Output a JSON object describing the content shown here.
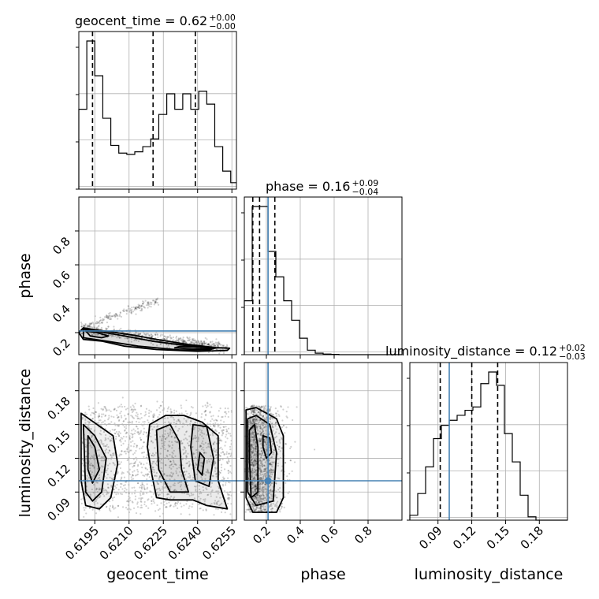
{
  "chart_data": {
    "type": "corner",
    "parameters": [
      "geocent_time",
      "phase",
      "luminosity_distance"
    ],
    "truth_color": "#4682b4",
    "truths": {
      "geocent_time": null,
      "phase": 0.21,
      "luminosity_distance": 0.1
    },
    "titles": {
      "geocent_time": {
        "prefix": "geocent_time = 0.62",
        "plus": "+0.00",
        "minus": "−0.00"
      },
      "phase": {
        "prefix": "phase = 0.16",
        "plus": "+0.09",
        "minus": "−0.04"
      },
      "luminosity_distance": {
        "prefix": "luminosity_distance = 0.12",
        "plus": "+0.02",
        "minus": "−0.03"
      }
    },
    "axis_labels": {
      "x": [
        "geocent_time",
        "phase",
        "luminosity_distance"
      ],
      "y": [
        "phase",
        "luminosity_distance"
      ]
    },
    "ranges": {
      "geocent_time": [
        0.6188,
        0.6257
      ],
      "phase": [
        0.07,
        1.0
      ],
      "luminosity_distance": [
        0.065,
        0.205
      ]
    },
    "ticks": {
      "geocent_time": {
        "values": [
          0.6195,
          0.621,
          0.6225,
          0.624,
          0.6255
        ],
        "labels": [
          "0.6195",
          "0.6210",
          "0.6225",
          "0.6240",
          "0.6255"
        ]
      },
      "phase": {
        "values": [
          0.2,
          0.4,
          0.6,
          0.8
        ],
        "labels": [
          "0.2",
          "0.4",
          "0.6",
          "0.8"
        ]
      },
      "luminosity_distance": {
        "values": [
          0.09,
          0.12,
          0.15,
          0.18
        ],
        "labels": [
          "0.09",
          "0.12",
          "0.15",
          "0.18"
        ]
      }
    },
    "histograms": {
      "geocent_time": {
        "edges": [
          0.6188,
          0.61915,
          0.6195,
          0.61985,
          0.6202,
          0.62055,
          0.6209,
          0.62125,
          0.6216,
          0.62195,
          0.6223,
          0.62265,
          0.623,
          0.62335,
          0.6237,
          0.62405,
          0.6244,
          0.62475,
          0.6251,
          0.62545,
          0.6258
        ],
        "counts": [
          0.62,
          1.15,
          0.88,
          0.55,
          0.34,
          0.28,
          0.27,
          0.29,
          0.33,
          0.39,
          0.58,
          0.74,
          0.62,
          0.74,
          0.62,
          0.76,
          0.66,
          0.33,
          0.14,
          0.05
        ],
        "quantiles": [
          0.6194,
          0.62205,
          0.6239
        ]
      },
      "phase": {
        "edges": [
          0.07,
          0.1165,
          0.163,
          0.2095,
          0.256,
          0.3025,
          0.349,
          0.3955,
          0.442,
          0.4885,
          0.535,
          0.5815,
          0.628,
          0.6745,
          0.721,
          0.7675,
          0.814,
          0.8605,
          0.907,
          0.9535,
          1.0
        ],
        "counts": [
          0.36,
          0.99,
          0.99,
          0.69,
          0.52,
          0.36,
          0.23,
          0.11,
          0.03,
          0.01,
          0.004,
          0.002,
          0,
          0,
          0,
          0,
          0,
          0,
          0,
          0
        ],
        "quantiles": [
          0.12,
          0.16,
          0.25
        ]
      },
      "luminosity_distance": {
        "edges": [
          0.065,
          0.072,
          0.079,
          0.086,
          0.093,
          0.1,
          0.107,
          0.114,
          0.121,
          0.128,
          0.135,
          0.142,
          0.149,
          0.156,
          0.163,
          0.17,
          0.177,
          0.184,
          0.191,
          0.198,
          0.205
        ],
        "counts": [
          0.03,
          0.16,
          0.32,
          0.49,
          0.57,
          0.6,
          0.63,
          0.66,
          0.68,
          0.82,
          0.89,
          0.81,
          0.52,
          0.35,
          0.15,
          0.02,
          0,
          0,
          0,
          0
        ],
        "quantiles": [
          0.092,
          0.12,
          0.143
        ]
      }
    },
    "contours": {
      "phase_vs_geocent_time": [
        [
          [
            0.619,
            0.228
          ],
          [
            0.6196,
            0.215
          ],
          [
            0.6202,
            0.205
          ],
          [
            0.6212,
            0.185
          ],
          [
            0.6222,
            0.16
          ],
          [
            0.6236,
            0.13
          ],
          [
            0.6248,
            0.112
          ],
          [
            0.6254,
            0.108
          ],
          [
            0.6253,
            0.095
          ],
          [
            0.624,
            0.09
          ],
          [
            0.6222,
            0.1
          ],
          [
            0.6208,
            0.12
          ],
          [
            0.6198,
            0.15
          ],
          [
            0.619,
            0.16
          ],
          [
            0.6188,
            0.2
          ],
          [
            0.619,
            0.228
          ]
        ],
        [
          [
            0.619,
            0.22
          ],
          [
            0.6196,
            0.208
          ],
          [
            0.6206,
            0.185
          ],
          [
            0.622,
            0.15
          ],
          [
            0.6236,
            0.122
          ],
          [
            0.6248,
            0.11
          ],
          [
            0.6245,
            0.098
          ],
          [
            0.6232,
            0.098
          ],
          [
            0.6214,
            0.12
          ],
          [
            0.62,
            0.15
          ],
          [
            0.619,
            0.17
          ],
          [
            0.619,
            0.22
          ]
        ],
        [
          [
            0.6191,
            0.21
          ],
          [
            0.6196,
            0.2
          ],
          [
            0.6201,
            0.18
          ],
          [
            0.6198,
            0.17
          ],
          [
            0.6193,
            0.18
          ],
          [
            0.6191,
            0.21
          ]
        ],
        [
          [
            0.6232,
            0.118
          ],
          [
            0.6244,
            0.112
          ],
          [
            0.6247,
            0.105
          ],
          [
            0.6238,
            0.103
          ],
          [
            0.623,
            0.11
          ],
          [
            0.6232,
            0.118
          ]
        ]
      ],
      "luminosity_distance_vs_geocent_time": [
        [
          [
            0.6189,
            0.16
          ],
          [
            0.6196,
            0.15
          ],
          [
            0.6203,
            0.14
          ],
          [
            0.6205,
            0.115
          ],
          [
            0.6202,
            0.085
          ],
          [
            0.6197,
            0.075
          ],
          [
            0.6191,
            0.078
          ],
          [
            0.6189,
            0.1
          ],
          [
            0.6189,
            0.16
          ]
        ],
        [
          [
            0.619,
            0.15
          ],
          [
            0.6195,
            0.14
          ],
          [
            0.62,
            0.12
          ],
          [
            0.6198,
            0.09
          ],
          [
            0.6194,
            0.082
          ],
          [
            0.6191,
            0.09
          ],
          [
            0.619,
            0.15
          ]
        ],
        [
          [
            0.6192,
            0.14
          ],
          [
            0.6195,
            0.13
          ],
          [
            0.6197,
            0.11
          ],
          [
            0.6194,
            0.098
          ],
          [
            0.6192,
            0.11
          ],
          [
            0.6192,
            0.14
          ]
        ],
        [
          [
            0.6219,
            0.15
          ],
          [
            0.6226,
            0.158
          ],
          [
            0.6234,
            0.158
          ],
          [
            0.6242,
            0.152
          ],
          [
            0.6249,
            0.14
          ],
          [
            0.6249,
            0.1
          ],
          [
            0.6253,
            0.075
          ],
          [
            0.6244,
            0.078
          ],
          [
            0.6238,
            0.083
          ],
          [
            0.6228,
            0.083
          ],
          [
            0.6222,
            0.085
          ],
          [
            0.622,
            0.105
          ],
          [
            0.6218,
            0.13
          ],
          [
            0.6219,
            0.15
          ]
        ],
        [
          [
            0.6222,
            0.145
          ],
          [
            0.6228,
            0.15
          ],
          [
            0.6232,
            0.135
          ],
          [
            0.6233,
            0.11
          ],
          [
            0.6236,
            0.09
          ],
          [
            0.6228,
            0.09
          ],
          [
            0.6223,
            0.11
          ],
          [
            0.6222,
            0.145
          ]
        ],
        [
          [
            0.6238,
            0.15
          ],
          [
            0.6244,
            0.148
          ],
          [
            0.6247,
            0.12
          ],
          [
            0.6245,
            0.095
          ],
          [
            0.6239,
            0.1
          ],
          [
            0.6237,
            0.13
          ],
          [
            0.6238,
            0.15
          ]
        ],
        [
          [
            0.6241,
            0.125
          ],
          [
            0.6243,
            0.12
          ],
          [
            0.6242,
            0.105
          ],
          [
            0.624,
            0.11
          ],
          [
            0.6241,
            0.125
          ]
        ]
      ],
      "luminosity_distance_vs_phase": [
        [
          [
            0.08,
            0.163
          ],
          [
            0.14,
            0.165
          ],
          [
            0.26,
            0.155
          ],
          [
            0.3,
            0.14
          ],
          [
            0.3,
            0.085
          ],
          [
            0.26,
            0.072
          ],
          [
            0.12,
            0.072
          ],
          [
            0.08,
            0.085
          ],
          [
            0.08,
            0.163
          ]
        ],
        [
          [
            0.09,
            0.155
          ],
          [
            0.14,
            0.158
          ],
          [
            0.22,
            0.15
          ],
          [
            0.26,
            0.125
          ],
          [
            0.24,
            0.082
          ],
          [
            0.14,
            0.078
          ],
          [
            0.09,
            0.09
          ],
          [
            0.09,
            0.155
          ]
        ],
        [
          [
            0.1,
            0.145
          ],
          [
            0.13,
            0.15
          ],
          [
            0.15,
            0.13
          ],
          [
            0.15,
            0.09
          ],
          [
            0.11,
            0.085
          ],
          [
            0.1,
            0.12
          ],
          [
            0.1,
            0.145
          ]
        ],
        [
          [
            0.18,
            0.14
          ],
          [
            0.22,
            0.138
          ],
          [
            0.23,
            0.125
          ],
          [
            0.2,
            0.12
          ],
          [
            0.18,
            0.13
          ],
          [
            0.18,
            0.14
          ]
        ]
      ]
    }
  }
}
